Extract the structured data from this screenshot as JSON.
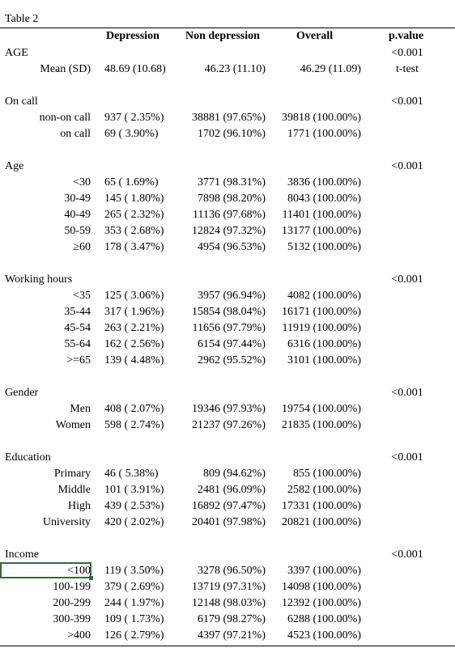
{
  "table_title": "Table 2",
  "headers": {
    "depression": "Depression",
    "non_depression": "Non depression",
    "overall": "Overall",
    "pvalue": "p.value"
  },
  "sections": [
    {
      "label": "AGE",
      "pvalue": "<0.001",
      "test": "t-test",
      "rows": [
        {
          "label": "Mean (SD)",
          "depression": "48.69 (10.68)",
          "non_depression": "46.23 (11.10)",
          "overall": "46.29 (11.09)"
        }
      ]
    },
    {
      "label": "On call",
      "pvalue": "<0.001",
      "rows": [
        {
          "label": "non-on call",
          "depression": "937 ( 2.35%)",
          "non_depression": "38881 (97.65%)",
          "overall": "39818 (100.00%)"
        },
        {
          "label": "on call",
          "depression": "69 ( 3.90%)",
          "non_depression": "1702 (96.10%)",
          "overall": "1771 (100.00%)"
        }
      ]
    },
    {
      "label": "Age",
      "pvalue": "<0.001",
      "rows": [
        {
          "label": "<30",
          "depression": "65 ( 1.69%)",
          "non_depression": "3771 (98.31%)",
          "overall": "3836 (100.00%)"
        },
        {
          "label": "30-49",
          "depression": "145 ( 1.80%)",
          "non_depression": "7898 (98.20%)",
          "overall": "8043 (100.00%)"
        },
        {
          "label": "40-49",
          "depression": "265 ( 2.32%)",
          "non_depression": "11136 (97.68%)",
          "overall": "11401 (100.00%)"
        },
        {
          "label": "50-59",
          "depression": "353 ( 2.68%)",
          "non_depression": "12824 (97.32%)",
          "overall": "13177 (100.00%)"
        },
        {
          "label": "≥60",
          "depression": "178 ( 3.47%)",
          "non_depression": "4954 (96.53%)",
          "overall": "5132 (100.00%)"
        }
      ]
    },
    {
      "label": "Working hours",
      "pvalue": "<0.001",
      "rows": [
        {
          "label": "<35",
          "depression": "125 ( 3.06%)",
          "non_depression": "3957 (96.94%)",
          "overall": "4082 (100.00%)"
        },
        {
          "label": "35-44",
          "depression": "317 ( 1.96%)",
          "non_depression": "15854 (98.04%)",
          "overall": "16171 (100.00%)"
        },
        {
          "label": "45-54",
          "depression": "263 ( 2.21%)",
          "non_depression": "11656 (97.79%)",
          "overall": "11919 (100.00%)"
        },
        {
          "label": "55-64",
          "depression": "162 ( 2.56%)",
          "non_depression": "6154 (97.44%)",
          "overall": "6316 (100.00%)"
        },
        {
          "label": ">=65",
          "depression": "139 ( 4.48%)",
          "non_depression": "2962 (95.52%)",
          "overall": "3101 (100.00%)"
        }
      ]
    },
    {
      "label": "Gender",
      "pvalue": "<0.001",
      "rows": [
        {
          "label": "Men",
          "depression": "408 ( 2.07%)",
          "non_depression": "19346 (97.93%)",
          "overall": "19754 (100.00%)"
        },
        {
          "label": "Women",
          "depression": "598 ( 2.74%)",
          "non_depression": "21237 (97.26%)",
          "overall": "21835 (100.00%)"
        }
      ]
    },
    {
      "label": "Education",
      "pvalue": "<0.001",
      "rows": [
        {
          "label": "Primary",
          "depression": "46 ( 5.38%)",
          "non_depression": "809 (94.62%)",
          "overall": "855 (100.00%)"
        },
        {
          "label": "Middle",
          "depression": "101 ( 3.91%)",
          "non_depression": "2481 (96.09%)",
          "overall": "2582 (100.00%)"
        },
        {
          "label": "High",
          "depression": "439 ( 2.53%)",
          "non_depression": "16892 (97.47%)",
          "overall": "17331 (100.00%)"
        },
        {
          "label": "University",
          "depression": "420 ( 2.02%)",
          "non_depression": "20401 (97.98%)",
          "overall": "20821 (100.00%)"
        }
      ]
    },
    {
      "label": "Income",
      "pvalue": "<0.001",
      "rows": [
        {
          "label": "<100",
          "depression": "119 ( 3.50%)",
          "non_depression": "3278 (96.50%)",
          "overall": "3397 (100.00%)"
        },
        {
          "label": "100-199",
          "depression": "379 ( 2.69%)",
          "non_depression": "13719 (97.31%)",
          "overall": "14098 (100.00%)"
        },
        {
          "label": "200-299",
          "depression": "244 ( 1.97%)",
          "non_depression": "12148 (98.03%)",
          "overall": "12392 (100.00%)"
        },
        {
          "label": "300-399",
          "depression": "109 ( 1.73%)",
          "non_depression": "6179 (98.27%)",
          "overall": "6288 (100.00%)"
        },
        {
          "label": ">400",
          "depression": "126 ( 2.79%)",
          "non_depression": "4397 (97.21%)",
          "overall": "4523 (100.00%)"
        }
      ]
    }
  ]
}
